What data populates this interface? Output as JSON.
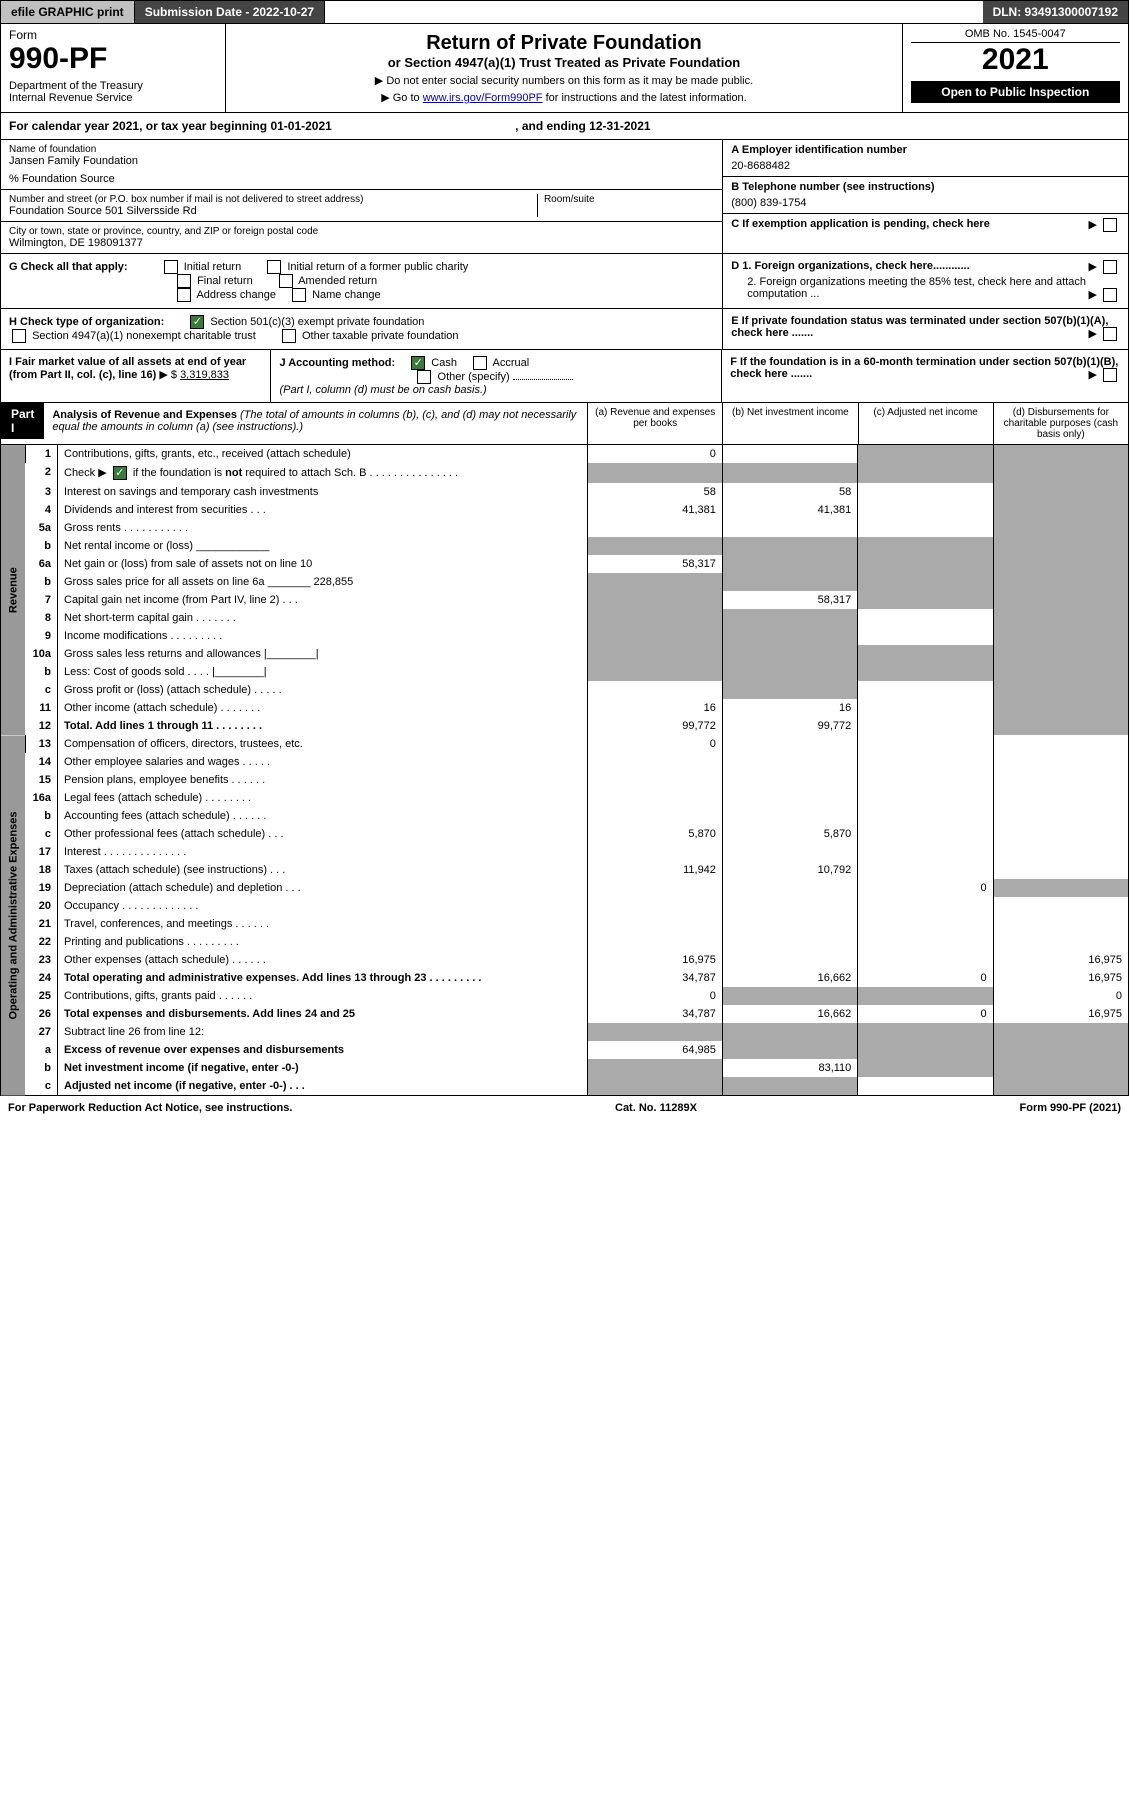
{
  "topbar": {
    "efile": "efile GRAPHIC print",
    "submission": "Submission Date - 2022-10-27",
    "dln": "DLN: 93491300007192"
  },
  "header": {
    "form_word": "Form",
    "form_num": "990-PF",
    "dept": "Department of the Treasury",
    "irs": "Internal Revenue Service",
    "title": "Return of Private Foundation",
    "subtitle": "or Section 4947(a)(1) Trust Treated as Private Foundation",
    "instr1": "▶ Do not enter social security numbers on this form as it may be made public.",
    "instr2_pre": "▶ Go to ",
    "instr2_link": "www.irs.gov/Form990PF",
    "instr2_post": " for instructions and the latest information.",
    "omb": "OMB No. 1545-0047",
    "year": "2021",
    "open": "Open to Public Inspection"
  },
  "cal_year": {
    "text": "For calendar year 2021, or tax year beginning 01-01-2021",
    "ending": ", and ending 12-31-2021"
  },
  "name_block": {
    "label": "Name of foundation",
    "value": "Jansen Family Foundation",
    "co": "% Foundation Source"
  },
  "addr_block": {
    "label": "Number and street (or P.O. box number if mail is not delivered to street address)",
    "value": "Foundation Source 501 Silversside Rd",
    "room_label": "Room/suite"
  },
  "city_block": {
    "label": "City or town, state or province, country, and ZIP or foreign postal code",
    "value": "Wilmington, DE  198091377"
  },
  "ein": {
    "label": "A Employer identification number",
    "value": "20-8688482"
  },
  "phone": {
    "label": "B Telephone number (see instructions)",
    "value": "(800) 839-1754"
  },
  "c_label": "C If exemption application is pending, check here",
  "d1_label": "D 1. Foreign organizations, check here............",
  "d2_label": "2. Foreign organizations meeting the 85% test, check here and attach computation ...",
  "e_label": "E  If private foundation status was terminated under section 507(b)(1)(A), check here .......",
  "f_label": "F  If the foundation is in a 60-month termination under section 507(b)(1)(B), check here .......",
  "g": {
    "label": "G Check all that apply:",
    "opts": [
      "Initial return",
      "Initial return of a former public charity",
      "Final return",
      "Amended return",
      "Address change",
      "Name change"
    ]
  },
  "h": {
    "label": "H Check type of organization:",
    "opt1": "Section 501(c)(3) exempt private foundation",
    "opt2": "Section 4947(a)(1) nonexempt charitable trust",
    "opt3": "Other taxable private foundation"
  },
  "i": {
    "label": "I Fair market value of all assets at end of year (from Part II, col. (c), line 16)",
    "value": "3,319,833"
  },
  "j": {
    "label": "J Accounting method:",
    "cash": "Cash",
    "accrual": "Accrual",
    "other": "Other (specify)",
    "note": "(Part I, column (d) must be on cash basis.)"
  },
  "part1": {
    "label": "Part I",
    "title": "Analysis of Revenue and Expenses",
    "note": "(The total of amounts in columns (b), (c), and (d) may not necessarily equal the amounts in column (a) (see instructions).)",
    "col_a": "(a)   Revenue and expenses per books",
    "col_b": "(b)  Net investment income",
    "col_c": "(c)  Adjusted net income",
    "col_d": "(d)  Disbursements for charitable purposes (cash basis only)"
  },
  "side_labels": {
    "revenue": "Revenue",
    "expenses": "Operating and Administrative Expenses"
  },
  "rows": [
    {
      "n": "1",
      "desc": "Contributions, gifts, grants, etc., received (attach schedule)",
      "a": "0",
      "b": "",
      "c": "shade",
      "d": "shade"
    },
    {
      "n": "2",
      "desc": "Check ▶ ☑ if the foundation is not required to attach Sch. B       .   .   .   .   .   .   .   .   .   .   .   .   .   .   .",
      "a": "shade",
      "b": "shade",
      "c": "shade",
      "d": "shade",
      "checked": true
    },
    {
      "n": "3",
      "desc": "Interest on savings and temporary cash investments",
      "a": "58",
      "b": "58",
      "c": "",
      "d": "shade"
    },
    {
      "n": "4",
      "desc": "Dividends and interest from securities    .    .    .",
      "a": "41,381",
      "b": "41,381",
      "c": "",
      "d": "shade"
    },
    {
      "n": "5a",
      "desc": "Gross rents       .    .    .    .    .    .    .    .    .    .    .",
      "a": "",
      "b": "",
      "c": "",
      "d": "shade"
    },
    {
      "n": "b",
      "desc": "Net rental income or (loss)  ____________",
      "a": "shade",
      "b": "shade",
      "c": "shade",
      "d": "shade"
    },
    {
      "n": "6a",
      "desc": "Net gain or (loss) from sale of assets not on line 10",
      "a": "58,317",
      "b": "shade",
      "c": "shade",
      "d": "shade"
    },
    {
      "n": "b",
      "desc": "Gross sales price for all assets on line 6a _______ 228,855",
      "a": "shade",
      "b": "shade",
      "c": "shade",
      "d": "shade"
    },
    {
      "n": "7",
      "desc": "Capital gain net income (from Part IV, line 2)    .    .    .",
      "a": "shade",
      "b": "58,317",
      "c": "shade",
      "d": "shade"
    },
    {
      "n": "8",
      "desc": "Net short-term capital gain   .    .    .    .    .    .    .",
      "a": "shade",
      "b": "shade",
      "c": "",
      "d": "shade"
    },
    {
      "n": "9",
      "desc": "Income modifications  .    .    .    .    .    .    .    .    .",
      "a": "shade",
      "b": "shade",
      "c": "",
      "d": "shade"
    },
    {
      "n": "10a",
      "desc": "Gross sales less returns and allowances   |________|",
      "a": "shade",
      "b": "shade",
      "c": "shade",
      "d": "shade"
    },
    {
      "n": "b",
      "desc": "Less: Cost of goods sold      .    .    .    .   |________|",
      "a": "shade",
      "b": "shade",
      "c": "shade",
      "d": "shade"
    },
    {
      "n": "c",
      "desc": "Gross profit or (loss) (attach schedule)      .    .    .    .    .",
      "a": "",
      "b": "shade",
      "c": "",
      "d": "shade"
    },
    {
      "n": "11",
      "desc": "Other income (attach schedule)    .    .    .    .    .    .    .",
      "a": "16",
      "b": "16",
      "c": "",
      "d": "shade"
    },
    {
      "n": "12",
      "desc": "Total. Add lines 1 through 11    .    .    .    .    .    .    .    .",
      "a": "99,772",
      "b": "99,772",
      "c": "",
      "d": "shade",
      "bold": true
    },
    {
      "n": "13",
      "desc": "Compensation of officers, directors, trustees, etc.",
      "a": "0",
      "b": "",
      "c": "",
      "d": ""
    },
    {
      "n": "14",
      "desc": "Other employee salaries and wages    .    .    .    .    .",
      "a": "",
      "b": "",
      "c": "",
      "d": ""
    },
    {
      "n": "15",
      "desc": "Pension plans, employee benefits   .    .    .    .    .    .",
      "a": "",
      "b": "",
      "c": "",
      "d": ""
    },
    {
      "n": "16a",
      "desc": "Legal fees (attach schedule)  .    .    .    .    .    .    .    .",
      "a": "",
      "b": "",
      "c": "",
      "d": ""
    },
    {
      "n": "b",
      "desc": "Accounting fees (attach schedule)  .    .    .    .    .    .",
      "a": "",
      "b": "",
      "c": "",
      "d": ""
    },
    {
      "n": "c",
      "desc": "Other professional fees (attach schedule)     .    .    .",
      "a": "5,870",
      "b": "5,870",
      "c": "",
      "d": ""
    },
    {
      "n": "17",
      "desc": "Interest  .    .    .    .    .    .    .    .    .    .    .    .    .    .",
      "a": "",
      "b": "",
      "c": "",
      "d": ""
    },
    {
      "n": "18",
      "desc": "Taxes (attach schedule) (see instructions)       .    .    .",
      "a": "11,942",
      "b": "10,792",
      "c": "",
      "d": ""
    },
    {
      "n": "19",
      "desc": "Depreciation (attach schedule) and depletion    .    .    .",
      "a": "",
      "b": "",
      "c": "0",
      "d": "shade"
    },
    {
      "n": "20",
      "desc": "Occupancy  .    .    .    .    .    .    .    .    .    .    .    .    .",
      "a": "",
      "b": "",
      "c": "",
      "d": ""
    },
    {
      "n": "21",
      "desc": "Travel, conferences, and meetings  .    .    .    .    .    .",
      "a": "",
      "b": "",
      "c": "",
      "d": ""
    },
    {
      "n": "22",
      "desc": "Printing and publications  .    .    .    .    .    .    .    .    .",
      "a": "",
      "b": "",
      "c": "",
      "d": ""
    },
    {
      "n": "23",
      "desc": "Other expenses (attach schedule)  .    .    .    .    .    .",
      "a": "16,975",
      "b": "",
      "c": "",
      "d": "16,975"
    },
    {
      "n": "24",
      "desc": "Total operating and administrative expenses. Add lines 13 through 23    .    .    .    .    .    .    .    .    .",
      "a": "34,787",
      "b": "16,662",
      "c": "0",
      "d": "16,975",
      "bold": true
    },
    {
      "n": "25",
      "desc": "Contributions, gifts, grants paid      .    .    .    .    .    .",
      "a": "0",
      "b": "shade",
      "c": "shade",
      "d": "0"
    },
    {
      "n": "26",
      "desc": "Total expenses and disbursements. Add lines 24 and 25",
      "a": "34,787",
      "b": "16,662",
      "c": "0",
      "d": "16,975",
      "bold": true
    },
    {
      "n": "27",
      "desc": "Subtract line 26 from line 12:",
      "a": "shade",
      "b": "shade",
      "c": "shade",
      "d": "shade"
    },
    {
      "n": "a",
      "desc": "Excess of revenue over expenses and disbursements",
      "a": "64,985",
      "b": "shade",
      "c": "shade",
      "d": "shade",
      "bold": true
    },
    {
      "n": "b",
      "desc": "Net investment income (if negative, enter -0-)",
      "a": "shade",
      "b": "83,110",
      "c": "shade",
      "d": "shade",
      "bold": true
    },
    {
      "n": "c",
      "desc": "Adjusted net income (if negative, enter -0-)    .    .    .",
      "a": "shade",
      "b": "shade",
      "c": "",
      "d": "shade",
      "bold": true
    }
  ],
  "footer": {
    "left": "For Paperwork Reduction Act Notice, see instructions.",
    "center": "Cat. No. 11289X",
    "right": "Form 990-PF (2021)"
  },
  "colors": {
    "shade": "#aaaaaa",
    "darkbar": "#444444",
    "check_green": "#3a7a3a"
  }
}
